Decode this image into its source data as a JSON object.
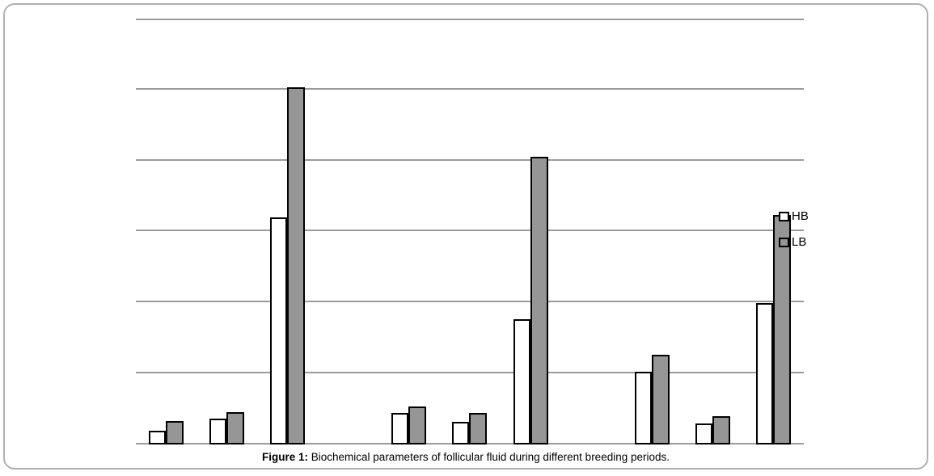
{
  "window": {
    "background": "#ffffff",
    "frame_border_color": "#b0b0b0"
  },
  "caption": {
    "label": "Figure 1:",
    "text": "Biochemical parameters of follicular fluid during different breeding periods."
  },
  "legend": {
    "position": "inside-right",
    "items": [
      {
        "label": "HB",
        "fill": "#ffffff"
      },
      {
        "label": "LB",
        "fill": "#969696"
      }
    ]
  },
  "chart_data": {
    "type": "bar",
    "title": "Figure 1: Biochemical parameters of follicular fluid during different breeding periods.",
    "xlabel": "",
    "ylabel": "",
    "axis_tick_labels_visible": false,
    "note": "No axis tick labels or category labels are rendered in the figure; values are estimated in gridline units (1 unit = one horizontal gridline interval). 9 unlabeled category groups arranged in three clusters of three.",
    "ylim": [
      0,
      6
    ],
    "gridlines_y": [
      0,
      1,
      2,
      3,
      4,
      5,
      6
    ],
    "num_slots": 11,
    "group_slots": [
      0,
      1,
      2,
      4,
      5,
      6,
      8,
      9,
      10
    ],
    "categories": [
      "",
      "",
      "",
      "",
      "",
      "",
      "",
      "",
      ""
    ],
    "series": [
      {
        "name": "HB",
        "fill": "#ffffff",
        "values": [
          0.19,
          0.36,
          3.2,
          0.44,
          0.32,
          1.77,
          1.03,
          0.3,
          1.99
        ]
      },
      {
        "name": "LB",
        "fill": "#969696",
        "values": [
          0.33,
          0.46,
          5.03,
          0.54,
          0.44,
          4.05,
          1.26,
          0.4,
          3.23
        ]
      }
    ],
    "bar_border_color": "#000000",
    "gridline_color": "#9b9b9b",
    "grid": true,
    "legend_position": "inside-right"
  }
}
